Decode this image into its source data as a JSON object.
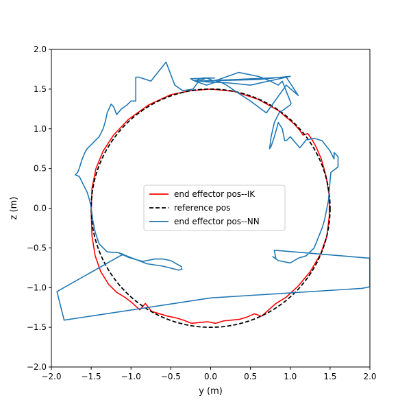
{
  "chart_data": {
    "type": "line",
    "xlabel": "y (m)",
    "ylabel": "z (m)",
    "xlim": [
      -2.0,
      2.0
    ],
    "ylim": [
      -2.0,
      2.0
    ],
    "xticks": [
      -2.0,
      -1.5,
      -1.0,
      -0.5,
      0.0,
      0.5,
      1.0,
      1.5,
      2.0
    ],
    "yticks": [
      -2.0,
      -1.5,
      -1.0,
      -0.5,
      0.0,
      0.5,
      1.0,
      1.5,
      2.0
    ],
    "xtick_labels": [
      "−2.0",
      "−1.5",
      "−1.0",
      "−0.5",
      "0.0",
      "0.5",
      "1.0",
      "1.5",
      "2.0"
    ],
    "ytick_labels": [
      "−2.0",
      "−1.5",
      "−1.0",
      "−0.5",
      "0.0",
      "0.5",
      "1.0",
      "1.5",
      "2.0"
    ],
    "grid": false,
    "legend_position": "center",
    "legend": [
      {
        "label": "end effector pos--IK",
        "color": "#ff0000",
        "style": "solid"
      },
      {
        "label": "reference pos",
        "color": "#000000",
        "style": "dashed"
      },
      {
        "label": "end effector pos--NN",
        "color": "#1f77b4",
        "style": "solid"
      }
    ],
    "series": [
      {
        "name": "end effector pos--IK",
        "color": "#ff0000",
        "style": "solid",
        "points": [
          [
            0.0,
            1.5
          ],
          [
            0.3,
            1.47
          ],
          [
            0.6,
            1.37
          ],
          [
            0.85,
            1.23
          ],
          [
            1.05,
            1.06
          ],
          [
            1.12,
            0.98
          ],
          [
            1.16,
            0.92
          ],
          [
            1.22,
            0.94
          ],
          [
            1.27,
            0.87
          ],
          [
            1.32,
            0.78
          ],
          [
            1.39,
            0.62
          ],
          [
            1.45,
            0.4
          ],
          [
            1.49,
            0.15
          ],
          [
            1.49,
            -0.1
          ],
          [
            1.46,
            -0.35
          ],
          [
            1.38,
            -0.58
          ],
          [
            1.25,
            -0.8
          ],
          [
            1.1,
            -0.98
          ],
          [
            0.95,
            -1.12
          ],
          [
            0.82,
            -1.2
          ],
          [
            0.73,
            -1.28
          ],
          [
            0.64,
            -1.36
          ],
          [
            0.55,
            -1.33
          ],
          [
            0.46,
            -1.37
          ],
          [
            0.36,
            -1.4
          ],
          [
            0.26,
            -1.41
          ],
          [
            0.16,
            -1.42
          ],
          [
            0.06,
            -1.45
          ],
          [
            -0.04,
            -1.43
          ],
          [
            -0.14,
            -1.44
          ],
          [
            -0.24,
            -1.45
          ],
          [
            -0.34,
            -1.41
          ],
          [
            -0.44,
            -1.38
          ],
          [
            -0.54,
            -1.36
          ],
          [
            -0.64,
            -1.33
          ],
          [
            -0.74,
            -1.3
          ],
          [
            -0.82,
            -1.2
          ],
          [
            -0.89,
            -1.28
          ],
          [
            -1.0,
            -1.18
          ],
          [
            -1.08,
            -1.12
          ],
          [
            -1.18,
            -1.06
          ],
          [
            -1.28,
            -0.96
          ],
          [
            -1.38,
            -0.8
          ],
          [
            -1.45,
            -0.6
          ],
          [
            -1.49,
            -0.35
          ],
          [
            -1.5,
            -0.05
          ],
          [
            -1.49,
            0.25
          ],
          [
            -1.44,
            0.5
          ],
          [
            -1.35,
            0.72
          ],
          [
            -1.22,
            0.92
          ],
          [
            -1.03,
            1.12
          ],
          [
            -0.78,
            1.3
          ],
          [
            -0.5,
            1.43
          ],
          [
            -0.25,
            1.48
          ],
          [
            0.0,
            1.5
          ]
        ]
      },
      {
        "name": "reference pos",
        "color": "#000000",
        "style": "dashed",
        "circle": {
          "center": [
            0.0,
            0.0
          ],
          "radius": 1.5
        }
      },
      {
        "name": "end effector pos--NN",
        "color": "#1f77b4",
        "style": "solid",
        "points": [
          [
            -0.36,
            -0.74
          ],
          [
            -0.5,
            -0.66
          ],
          [
            -0.6,
            -0.64
          ],
          [
            -0.7,
            -0.64
          ],
          [
            -0.85,
            -0.67
          ],
          [
            -0.93,
            -0.65
          ],
          [
            -1.03,
            -0.62
          ],
          [
            -1.16,
            -0.56
          ],
          [
            -1.1,
            -0.58
          ],
          [
            -1.93,
            -1.05
          ],
          [
            -1.84,
            -1.41
          ],
          [
            0.0,
            -1.13
          ],
          [
            1.9,
            -1.01
          ],
          [
            2.0,
            -0.99
          ],
          [
            2.0,
            -0.63
          ],
          [
            0.8,
            -0.53
          ],
          [
            0.82,
            -0.64
          ],
          [
            0.78,
            -0.61
          ],
          [
            0.85,
            -0.66
          ],
          [
            1.0,
            -0.69
          ],
          [
            1.1,
            -0.63
          ],
          [
            1.2,
            -0.6
          ],
          [
            1.3,
            -0.5
          ],
          [
            1.4,
            -0.25
          ],
          [
            1.43,
            -0.15
          ],
          [
            1.48,
            0.1
          ],
          [
            1.5,
            0.35
          ],
          [
            1.51,
            0.45
          ],
          [
            1.6,
            0.52
          ],
          [
            1.6,
            0.65
          ],
          [
            1.55,
            0.7
          ],
          [
            1.55,
            0.62
          ],
          [
            1.5,
            0.72
          ],
          [
            1.4,
            0.85
          ],
          [
            1.3,
            0.88
          ],
          [
            1.2,
            0.86
          ],
          [
            1.12,
            0.76
          ],
          [
            1.0,
            0.9
          ],
          [
            0.95,
            0.85
          ],
          [
            0.93,
            0.85
          ],
          [
            0.9,
            1.0
          ],
          [
            0.85,
            1.08
          ],
          [
            0.8,
            0.9
          ],
          [
            0.76,
            0.78
          ],
          [
            0.74,
            0.75
          ],
          [
            0.76,
            0.9
          ],
          [
            0.8,
            1.08
          ],
          [
            0.86,
            1.2
          ],
          [
            1.0,
            1.3
          ],
          [
            1.01,
            1.32
          ],
          [
            0.9,
            1.6
          ],
          [
            0.85,
            1.55
          ],
          [
            0.75,
            1.6
          ],
          [
            0.6,
            1.66
          ],
          [
            0.35,
            1.71
          ],
          [
            0.1,
            1.62
          ],
          [
            0.02,
            1.6
          ],
          [
            0.0,
            1.62
          ],
          [
            -0.05,
            1.64
          ],
          [
            -0.15,
            1.6
          ],
          [
            -0.18,
            1.6
          ],
          [
            0.6,
            1.62
          ],
          [
            1.0,
            1.66
          ],
          [
            0.5,
            1.55
          ],
          [
            0.2,
            1.58
          ],
          [
            -0.05,
            1.59
          ],
          [
            -0.22,
            1.61
          ],
          [
            -0.25,
            1.63
          ],
          [
            0.05,
            1.64
          ],
          [
            -0.1,
            1.64
          ],
          [
            -0.2,
            1.6
          ],
          [
            -0.05,
            1.55
          ],
          [
            0.1,
            1.6
          ],
          [
            0.2,
            1.55
          ],
          [
            0.3,
            1.48
          ],
          [
            0.5,
            1.35
          ],
          [
            0.7,
            1.2
          ],
          [
            0.95,
            1.55
          ],
          [
            1.1,
            1.42
          ],
          [
            0.95,
            1.65
          ],
          [
            -0.15,
            1.6
          ],
          [
            -0.22,
            1.5
          ],
          [
            -0.35,
            1.48
          ],
          [
            -0.45,
            1.55
          ],
          [
            -0.56,
            1.84
          ],
          [
            -0.75,
            1.6
          ],
          [
            -0.9,
            1.65
          ],
          [
            -0.94,
            1.65
          ],
          [
            -0.94,
            1.35
          ],
          [
            -1.0,
            1.35
          ],
          [
            -1.05,
            1.3
          ],
          [
            -1.12,
            1.25
          ],
          [
            -1.18,
            1.18
          ],
          [
            -1.22,
            1.28
          ],
          [
            -1.25,
            1.31
          ],
          [
            -1.3,
            1.2
          ],
          [
            -1.32,
            1.1
          ],
          [
            -1.35,
            1.0
          ],
          [
            -1.4,
            0.9
          ],
          [
            -1.45,
            0.85
          ],
          [
            -1.5,
            0.8
          ],
          [
            -1.55,
            0.75
          ],
          [
            -1.58,
            0.7
          ],
          [
            -1.62,
            0.6
          ],
          [
            -1.65,
            0.5
          ],
          [
            -1.67,
            0.45
          ],
          [
            -1.7,
            0.42
          ],
          [
            -1.65,
            0.4
          ],
          [
            -1.6,
            0.3
          ],
          [
            -1.55,
            0.2
          ],
          [
            -1.52,
            0.1
          ],
          [
            -1.5,
            0.0
          ],
          [
            -1.48,
            -0.15
          ],
          [
            -1.45,
            -0.3
          ],
          [
            -1.4,
            -0.45
          ],
          [
            -1.3,
            -0.55
          ],
          [
            -1.16,
            -0.56
          ],
          [
            -0.8,
            -0.7
          ],
          [
            -0.6,
            -0.73
          ],
          [
            -0.4,
            -0.78
          ],
          [
            -0.36,
            -0.77
          ],
          [
            -0.37,
            -0.75
          ]
        ]
      }
    ]
  }
}
